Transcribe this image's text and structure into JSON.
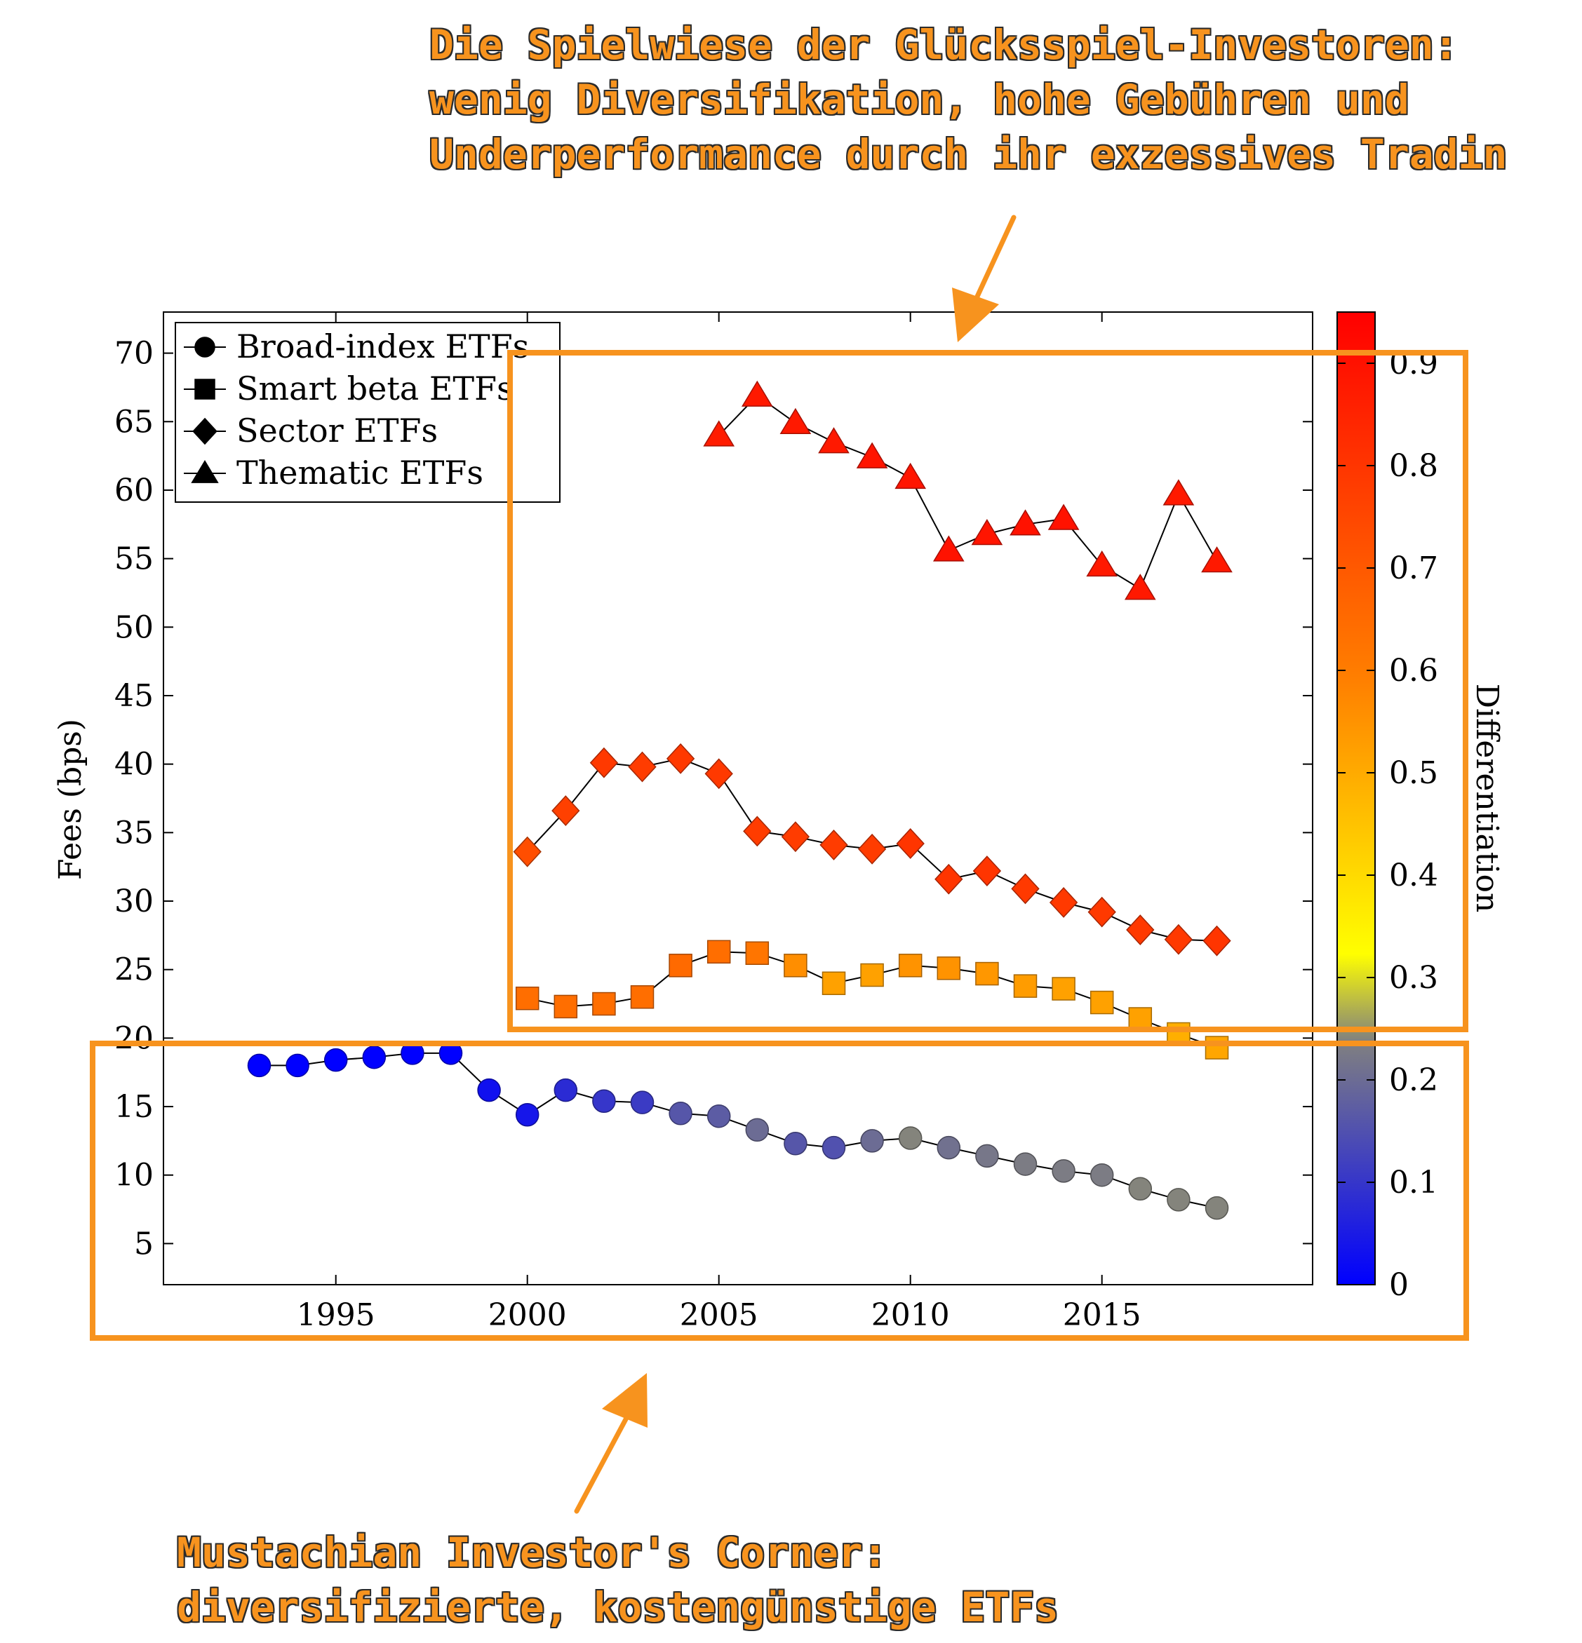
{
  "annotations": {
    "top_lines": [
      "Die Spielwiese der Glücksspiel-Investoren:",
      "wenig Diversifikation, hohe Gebühren und",
      "Underperformance durch ihr exzessives Tradin"
    ],
    "bottom_lines": [
      "Mustachian Investor's Corner:",
      "diversifizierte, kostengünstige ETFs"
    ],
    "accent_color": "#F7931E"
  },
  "chart_data": {
    "type": "scatter",
    "ylabel": "Fees (bps)",
    "xlabel": "",
    "title": "",
    "xlim": [
      1990.5,
      2020.5
    ],
    "ylim": [
      2,
      73
    ],
    "x_ticks": [
      "1995",
      "2000",
      "2005",
      "2010",
      "2015"
    ],
    "y_ticks": [
      "5",
      "10",
      "15",
      "20",
      "25",
      "30",
      "35",
      "40",
      "45",
      "50",
      "55",
      "60",
      "65",
      "70"
    ],
    "legend_position": "top-left",
    "colorbar": {
      "label": "Differentiation",
      "range": [
        0,
        0.95
      ],
      "ticks": [
        "0",
        "0.1",
        "0.2",
        "0.3",
        "0.4",
        "0.5",
        "0.6",
        "0.7",
        "0.8",
        "0.9"
      ],
      "colormap": [
        "#0000FF",
        "#808080",
        "#FFFF00",
        "#FF8000",
        "#FF0000"
      ]
    },
    "series": [
      {
        "name": "Broad-index ETFs",
        "marker": "circle",
        "x": [
          1993,
          1994,
          1995,
          1996,
          1997,
          1998,
          1999,
          2000,
          2001,
          2002,
          2003,
          2004,
          2005,
          2006,
          2007,
          2008,
          2009,
          2010,
          2011,
          2012,
          2013,
          2014,
          2015,
          2016,
          2017,
          2018
        ],
        "y": [
          18.0,
          18.0,
          18.4,
          18.6,
          18.9,
          18.9,
          16.2,
          14.4,
          16.2,
          15.4,
          15.3,
          14.5,
          14.3,
          13.3,
          12.3,
          12.0,
          12.5,
          12.7,
          12.0,
          11.4,
          10.8,
          10.3,
          10.0,
          9.0,
          8.2,
          7.6
        ],
        "color_value": [
          0.0,
          0.0,
          0.0,
          0.0,
          0.0,
          0.0,
          0.03,
          0.04,
          0.08,
          0.1,
          0.11,
          0.16,
          0.17,
          0.2,
          0.16,
          0.15,
          0.2,
          0.24,
          0.21,
          0.22,
          0.23,
          0.23,
          0.23,
          0.24,
          0.24,
          0.24
        ]
      },
      {
        "name": "Smart beta ETFs",
        "marker": "square",
        "x": [
          2000,
          2001,
          2002,
          2003,
          2004,
          2005,
          2006,
          2007,
          2008,
          2009,
          2010,
          2011,
          2012,
          2013,
          2014,
          2015,
          2016,
          2017,
          2018
        ],
        "y": [
          22.9,
          22.3,
          22.5,
          23.0,
          25.3,
          26.3,
          26.2,
          25.3,
          24.0,
          24.6,
          25.3,
          25.1,
          24.7,
          23.8,
          23.6,
          22.6,
          21.4,
          20.3,
          19.3
        ],
        "color_value": [
          0.64,
          0.64,
          0.64,
          0.64,
          0.65,
          0.64,
          0.62,
          0.56,
          0.52,
          0.52,
          0.55,
          0.55,
          0.54,
          0.53,
          0.52,
          0.52,
          0.52,
          0.49,
          0.51
        ]
      },
      {
        "name": "Sector ETFs",
        "marker": "diamond",
        "x": [
          2000,
          2001,
          2002,
          2003,
          2004,
          2005,
          2006,
          2007,
          2008,
          2009,
          2010,
          2011,
          2012,
          2013,
          2014,
          2015,
          2016,
          2017,
          2018
        ],
        "y": [
          33.6,
          36.6,
          40.1,
          39.8,
          40.4,
          39.3,
          35.1,
          34.7,
          34.1,
          33.8,
          34.2,
          31.6,
          32.2,
          30.9,
          29.9,
          29.2,
          27.9,
          27.2,
          27.1
        ],
        "color_value": [
          0.73,
          0.77,
          0.79,
          0.78,
          0.79,
          0.79,
          0.78,
          0.78,
          0.78,
          0.78,
          0.8,
          0.8,
          0.8,
          0.79,
          0.79,
          0.79,
          0.79,
          0.79,
          0.8
        ]
      },
      {
        "name": "Thematic ETFs",
        "marker": "triangle",
        "x": [
          2005,
          2006,
          2007,
          2008,
          2009,
          2010,
          2011,
          2012,
          2013,
          2014,
          2015,
          2016,
          2017,
          2018
        ],
        "y": [
          64.0,
          66.9,
          64.9,
          63.5,
          62.4,
          60.9,
          55.6,
          56.8,
          57.5,
          57.9,
          54.5,
          52.8,
          59.7,
          54.8
        ],
        "color_value": [
          0.87,
          0.88,
          0.88,
          0.88,
          0.89,
          0.89,
          0.9,
          0.89,
          0.9,
          0.9,
          0.88,
          0.88,
          0.88,
          0.88
        ]
      }
    ]
  }
}
